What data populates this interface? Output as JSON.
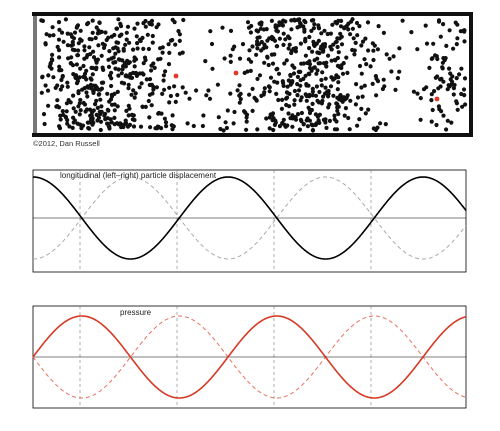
{
  "copyright": "©2012, Dan Russell",
  "tube": {
    "particle_color": "#111111",
    "tracer_color": "#e03a2a",
    "wall_color": "#111111",
    "piston_color": "#777777"
  },
  "displacement_panel": {
    "label": "longitudinal (left–right) particle displacement",
    "solid_color": "#000000",
    "dashed_color": "#aaaaaa",
    "cycles_shown": 2.25,
    "phase": "starts at positive peak"
  },
  "pressure_panel": {
    "label": "pressure",
    "solid_color": "#d63a24",
    "dashed_color": "#e87060",
    "cycles_shown": 2.25,
    "phase": "starts at zero, rising"
  }
}
